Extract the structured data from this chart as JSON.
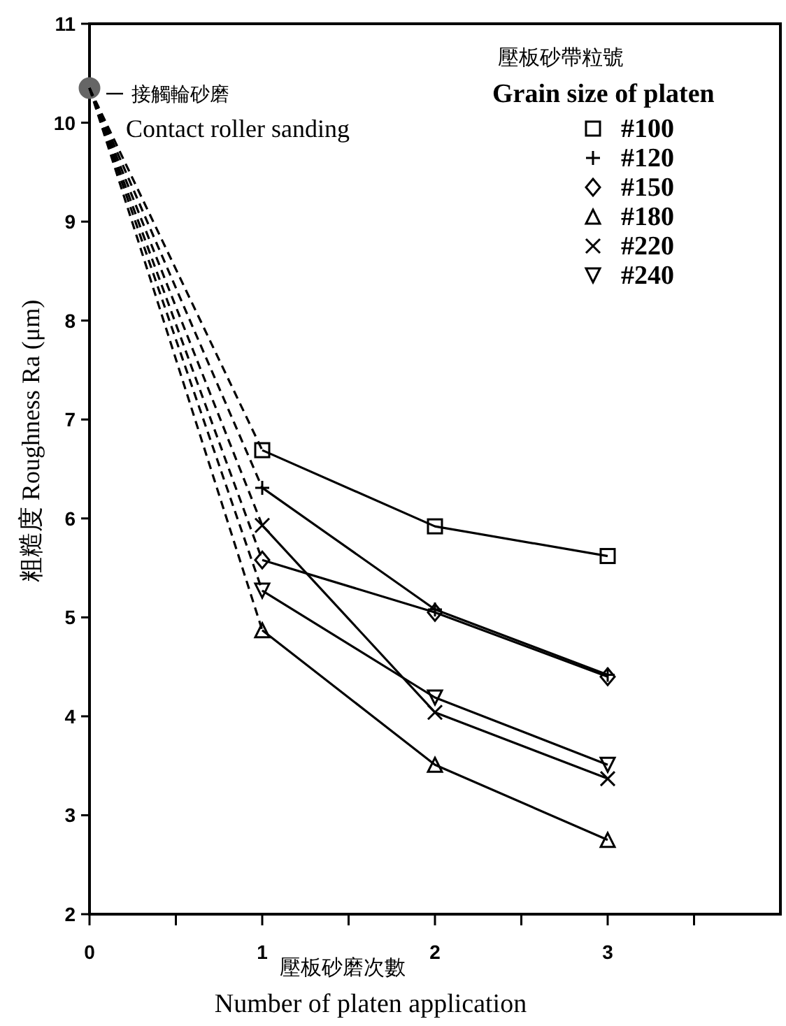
{
  "chart_data": {
    "type": "line",
    "xlabel": "壓板砂磨次數\nNumber of platen application",
    "ylabel": "粗糙度  Roughness  Ra (μm)",
    "legend_title": "壓板砂帶粒號\nGrain size of platen",
    "legend": "top right",
    "grid": false,
    "xlim": [
      0,
      4
    ],
    "xticks": [
      0,
      {
        "value": 0.5,
        "label": null
      },
      1,
      {
        "value": 1.5,
        "label": null
      },
      2,
      {
        "value": 2.5,
        "label": null
      },
      3,
      {
        "value": 3.5,
        "label": null
      }
    ],
    "ylim": [
      2,
      11
    ],
    "yticks": [
      2,
      3,
      4,
      5,
      6,
      7,
      8,
      9,
      10,
      11
    ],
    "annotations": [
      {
        "text": "接觸輪砂磨\nContact roller sanding",
        "x": 0,
        "y": 10.35
      }
    ],
    "series": [
      {
        "name": "#100",
        "color": "#000000",
        "x": [
          1,
          2,
          3
        ],
        "values": [
          6.69,
          5.92,
          5.62
        ],
        "marker": "square",
        "line_style": "solid"
      },
      {
        "name": "#120",
        "color": "#000000",
        "x": [
          1,
          2,
          3
        ],
        "values": [
          6.31,
          5.08,
          4.42
        ],
        "marker": "plus",
        "line_style": "solid"
      },
      {
        "name": "#150",
        "color": "#000000",
        "x": [
          1,
          2,
          3
        ],
        "values": [
          5.58,
          5.05,
          4.4
        ],
        "marker": "diamond",
        "line_style": "solid"
      },
      {
        "name": "#180",
        "color": "#000000",
        "x": [
          1,
          2,
          3
        ],
        "values": [
          4.87,
          3.51,
          2.75
        ],
        "marker": "triangle",
        "line_style": "solid"
      },
      {
        "name": "#220",
        "color": "#000000",
        "x": [
          1,
          2,
          3
        ],
        "values": [
          5.93,
          4.04,
          3.37
        ],
        "marker": "x",
        "line_style": "solid"
      },
      {
        "name": "#240",
        "color": "#000000",
        "x": [
          1,
          2,
          3
        ],
        "values": [
          5.27,
          4.19,
          3.51
        ],
        "marker": "triangle-down",
        "line_style": "solid"
      },
      {
        "color": "#000000",
        "x": [
          0,
          1
        ],
        "values": [
          10.35,
          6.69
        ],
        "marker": "none",
        "line_style": "dashed"
      },
      {
        "color": "#000000",
        "x": [
          0,
          1
        ],
        "values": [
          10.35,
          6.31
        ],
        "marker": "none",
        "line_style": "dashed"
      },
      {
        "color": "#000000",
        "x": [
          0,
          1
        ],
        "values": [
          10.35,
          5.58
        ],
        "marker": "none",
        "line_style": "dashed"
      },
      {
        "color": "#000000",
        "x": [
          0,
          1
        ],
        "values": [
          10.35,
          4.87
        ],
        "marker": "none",
        "line_style": "dashed"
      },
      {
        "color": "#000000",
        "x": [
          0,
          1
        ],
        "values": [
          10.35,
          5.93
        ],
        "marker": "none",
        "line_style": "dashed"
      },
      {
        "color": "#000000",
        "x": [
          0,
          1
        ],
        "values": [
          10.35,
          5.27
        ],
        "marker": "none",
        "line_style": "dashed"
      },
      {
        "type": "scatter",
        "color": "#666666",
        "x": [
          0
        ],
        "values": [
          10.35
        ],
        "marker": "circle"
      }
    ]
  }
}
